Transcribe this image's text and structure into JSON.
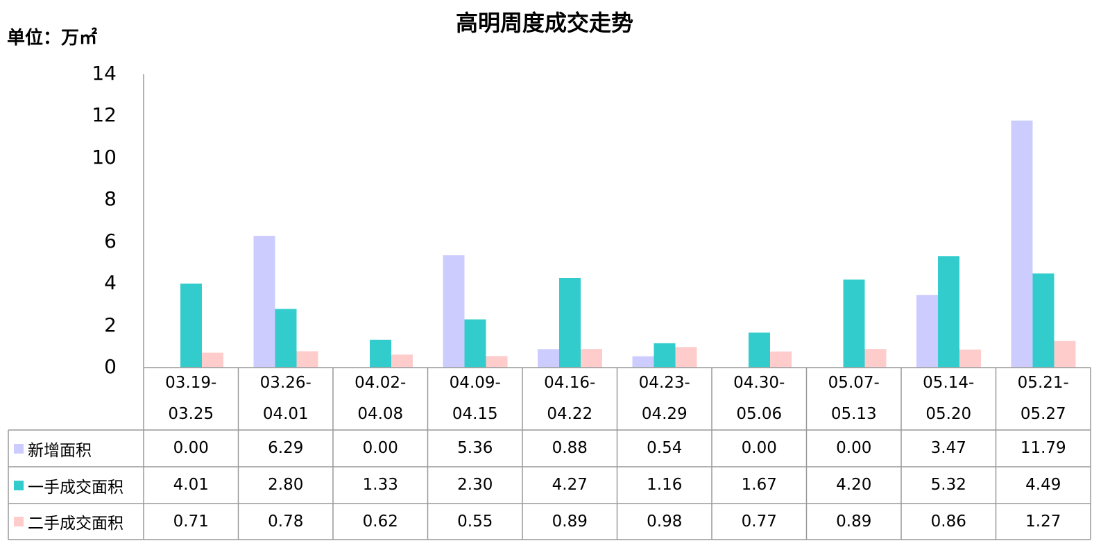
{
  "chart_data": {
    "type": "bar",
    "title": "高明周度成交走势",
    "unit_label": "单位：万㎡",
    "categories": [
      "03.19-\n03.25",
      "03.26-\n04.01",
      "04.02-\n04.08",
      "04.09-\n04.15",
      "04.16-\n04.22",
      "04.23-\n04.29",
      "04.30-\n05.06",
      "05.07-\n05.13",
      "05.14-\n05.20",
      "05.21-\n05.27"
    ],
    "series": [
      {
        "name": "新增面积",
        "color": "#ccccff",
        "values": [
          0,
          6.29,
          0,
          5.36,
          0.88,
          0.54,
          0,
          0,
          3.47,
          11.79
        ],
        "value_labels": [
          "0.00",
          "6.29",
          "0.00",
          "5.36",
          "0.88",
          "0.54",
          "0.00",
          "0.00",
          "3.47",
          "11.79"
        ]
      },
      {
        "name": "一手成交面积",
        "color": "#33cccc",
        "values": [
          4.01,
          2.8,
          1.33,
          2.3,
          4.27,
          1.16,
          1.67,
          4.2,
          5.32,
          4.49
        ],
        "value_labels": [
          "4.01",
          "2.80",
          "1.33",
          "2.30",
          "4.27",
          "1.16",
          "1.67",
          "4.20",
          "5.32",
          "4.49"
        ]
      },
      {
        "name": "二手成交面积",
        "color": "#ffcccc",
        "values": [
          0.71,
          0.78,
          0.62,
          0.55,
          0.89,
          0.98,
          0.77,
          0.89,
          0.86,
          1.27
        ],
        "value_labels": [
          "0.71",
          "0.78",
          "0.62",
          "0.55",
          "0.89",
          "0.98",
          "0.77",
          "0.89",
          "0.86",
          "1.27"
        ]
      }
    ],
    "ylim": [
      0,
      14
    ],
    "yticks": [
      0,
      2,
      4,
      6,
      8,
      10,
      12,
      14
    ],
    "grid": false
  }
}
